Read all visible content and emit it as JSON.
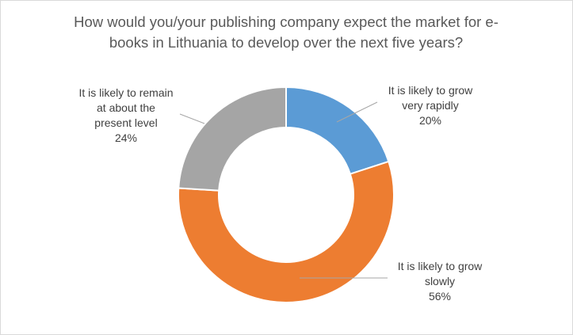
{
  "chart_data": {
    "type": "pie",
    "variant": "donut",
    "title_lines": [
      "How would you/your publishing company expect the market for e-",
      "books in Lithuania to develop over the next five years?"
    ],
    "slices": [
      {
        "label_lines": [
          "It is likely to grow",
          "very rapidly"
        ],
        "value": 20,
        "value_label": "20%",
        "color": "#5b9bd5"
      },
      {
        "label_lines": [
          "It is likely to grow",
          "slowly"
        ],
        "value": 56,
        "value_label": "56%",
        "color": "#ed7d31"
      },
      {
        "label_lines": [
          "It is likely to remain",
          "at about the",
          "present level"
        ],
        "value": 24,
        "value_label": "24%",
        "color": "#a5a5a5"
      }
    ],
    "legend": "none"
  }
}
